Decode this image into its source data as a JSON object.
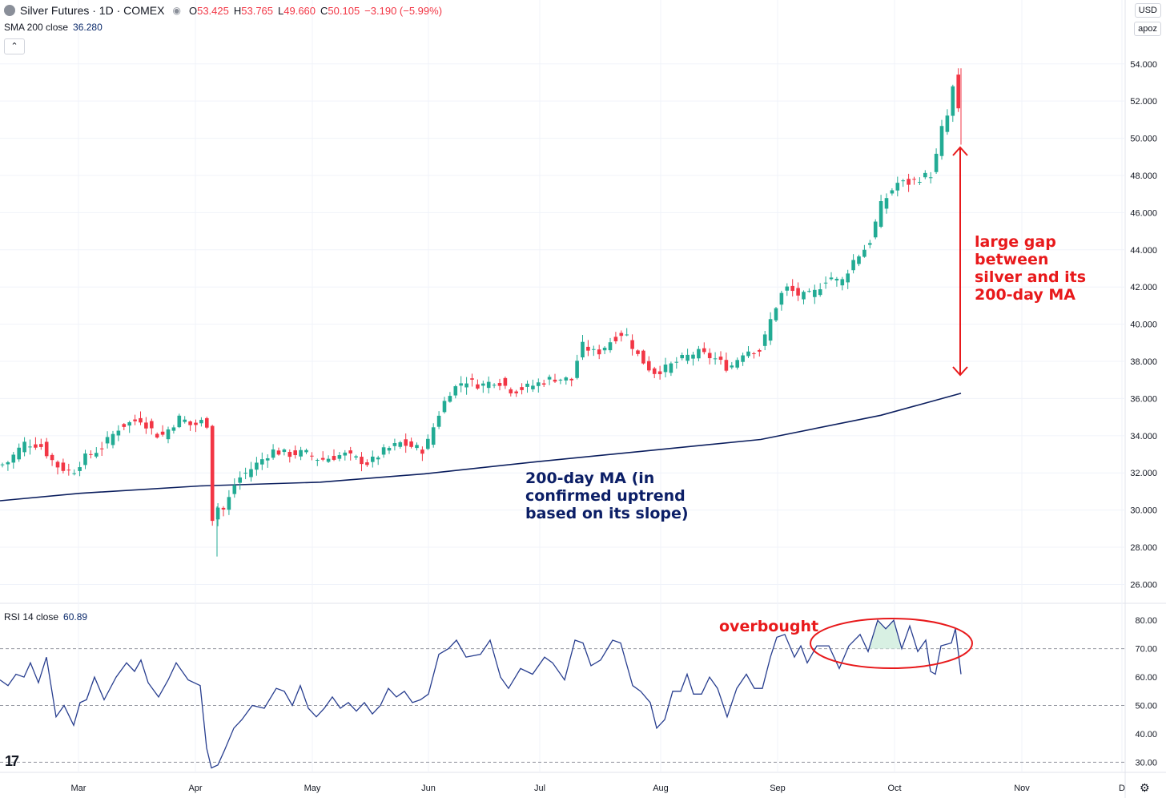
{
  "header": {
    "title": "Silver Futures · 1D · COMEX",
    "ohlc": [
      {
        "label": "O",
        "value": "53.425"
      },
      {
        "label": "H",
        "value": "53.765"
      },
      {
        "label": "L",
        "value": "49.660"
      },
      {
        "label": "C",
        "value": "50.105"
      }
    ],
    "change": "−3.190 (−5.99%)",
    "sma_label": "SMA 200 close",
    "sma_value": "36.280",
    "currency": "USD",
    "scale_mode": "apoz"
  },
  "rsi_panel": {
    "label": "RSI 14 close",
    "value": "60.89"
  },
  "annotations": {
    "gap": "large gap\nbetween\nsilver and its\n200-day MA",
    "ma": "200-day MA (in\nconfirmed uptrend\nbased on its slope)",
    "overbought": "overbought"
  },
  "colors": {
    "up": "#22ab94",
    "down": "#f23645",
    "ma": "#0b1e5e",
    "rsi": "#283e8f",
    "annotation_red": "#e8191b",
    "overbought_fill": "#d8f0e3"
  },
  "chart_data": [
    {
      "type": "candlestick",
      "title": "Silver Futures · 1D · COMEX",
      "x_ticks": [
        "Mar",
        "Apr",
        "May",
        "Jun",
        "Jul",
        "Aug",
        "Sep",
        "Oct",
        "Nov",
        "D"
      ],
      "y_ticks": [
        "26.000",
        "28.000",
        "30.000",
        "32.000",
        "34.000",
        "36.000",
        "38.000",
        "40.000",
        "42.000",
        "44.000",
        "46.000",
        "48.000",
        "50.000",
        "52.000",
        "54.000"
      ],
      "ylim": [
        25.2,
        55.8
      ],
      "grid": true,
      "series": [
        {
          "name": "SMA 200 close",
          "ma_points": [
            [
              0,
              30.5
            ],
            [
              100,
              30.9
            ],
            [
              250,
              31.3
            ],
            [
              400,
              31.5
            ],
            [
              530,
              31.95
            ],
            [
              670,
              32.6
            ],
            [
              810,
              33.2
            ],
            [
              950,
              33.8
            ],
            [
              1100,
              35.1
            ],
            [
              1200,
              36.28
            ]
          ]
        },
        {
          "name": "Silver Futures",
          "anchors": [
            [
              0,
              32.4
            ],
            [
              10,
              32.6
            ],
            [
              30,
              33.6
            ],
            [
              50,
              33.5
            ],
            [
              70,
              32.4
            ],
            [
              90,
              32.0
            ],
            [
              105,
              32.8
            ],
            [
              125,
              33.3
            ],
            [
              150,
              34.5
            ],
            [
              175,
              34.9
            ],
            [
              200,
              33.9
            ],
            [
              225,
              35.0
            ],
            [
              240,
              34.5
            ],
            [
              258,
              34.9
            ],
            [
              264,
              29.4
            ],
            [
              270,
              30.2
            ],
            [
              280,
              30.0
            ],
            [
              295,
              31.6
            ],
            [
              310,
              32.1
            ],
            [
              340,
              33.2
            ],
            [
              360,
              33.0
            ],
            [
              380,
              33.1
            ],
            [
              400,
              32.7
            ],
            [
              430,
              33.0
            ],
            [
              460,
              32.5
            ],
            [
              480,
              33.2
            ],
            [
              500,
              33.6
            ],
            [
              530,
              33.2
            ],
            [
              545,
              34.9
            ],
            [
              560,
              36.3
            ],
            [
              580,
              37.0
            ],
            [
              600,
              36.7
            ],
            [
              620,
              37.0
            ],
            [
              640,
              36.4
            ],
            [
              665,
              36.7
            ],
            [
              690,
              37.1
            ],
            [
              715,
              37.0
            ],
            [
              725,
              38.9
            ],
            [
              745,
              38.4
            ],
            [
              765,
              39.2
            ],
            [
              780,
              39.6
            ],
            [
              795,
              38.4
            ],
            [
              815,
              37.4
            ],
            [
              830,
              37.6
            ],
            [
              850,
              38.1
            ],
            [
              870,
              38.5
            ],
            [
              895,
              38.1
            ],
            [
              910,
              37.6
            ],
            [
              930,
              38.6
            ],
            [
              950,
              38.6
            ],
            [
              965,
              40.6
            ],
            [
              980,
              42.0
            ],
            [
              1000,
              41.5
            ],
            [
              1015,
              41.6
            ],
            [
              1035,
              42.6
            ],
            [
              1050,
              42.2
            ],
            [
              1065,
              43.4
            ],
            [
              1085,
              44.3
            ],
            [
              1100,
              46.4
            ],
            [
              1120,
              47.6
            ],
            [
              1135,
              47.6
            ],
            [
              1150,
              47.9
            ],
            [
              1165,
              48.1
            ],
            [
              1175,
              50.4
            ],
            [
              1185,
              51.4
            ],
            [
              1192,
              53.3
            ],
            [
              1200,
              50.1
            ]
          ]
        }
      ]
    },
    {
      "type": "line",
      "title": "RSI 14 close",
      "y_ticks": [
        "30.00",
        "40.00",
        "50.00",
        "60.00",
        "70.00",
        "80.00"
      ],
      "ylim": [
        27,
        84
      ],
      "reference_lines": [
        30,
        50,
        70
      ],
      "series": [
        {
          "name": "RSI 14 close",
          "points": [
            [
              0,
              59
            ],
            [
              10,
              57
            ],
            [
              20,
              61
            ],
            [
              30,
              60
            ],
            [
              38,
              65
            ],
            [
              48,
              58
            ],
            [
              58,
              67
            ],
            [
              70,
              46
            ],
            [
              80,
              50
            ],
            [
              92,
              43
            ],
            [
              100,
              51
            ],
            [
              108,
              52
            ],
            [
              118,
              60
            ],
            [
              130,
              52
            ],
            [
              145,
              60
            ],
            [
              158,
              65
            ],
            [
              168,
              62
            ],
            [
              176,
              66
            ],
            [
              185,
              58
            ],
            [
              198,
              53
            ],
            [
              210,
              59
            ],
            [
              220,
              65
            ],
            [
              235,
              59
            ],
            [
              250,
              57
            ],
            [
              258,
              35
            ],
            [
              264,
              28
            ],
            [
              272,
              29
            ],
            [
              280,
              34
            ],
            [
              292,
              42
            ],
            [
              302,
              45
            ],
            [
              315,
              50
            ],
            [
              330,
              49
            ],
            [
              345,
              56
            ],
            [
              355,
              55
            ],
            [
              365,
              50
            ],
            [
              375,
              57
            ],
            [
              385,
              49
            ],
            [
              395,
              46
            ],
            [
              405,
              49
            ],
            [
              415,
              53
            ],
            [
              425,
              49
            ],
            [
              435,
              51
            ],
            [
              445,
              48
            ],
            [
              455,
              51
            ],
            [
              465,
              47
            ],
            [
              475,
              50
            ],
            [
              485,
              56
            ],
            [
              495,
              53
            ],
            [
              505,
              55
            ],
            [
              515,
              51
            ],
            [
              525,
              52
            ],
            [
              535,
              54
            ],
            [
              548,
              68
            ],
            [
              560,
              70
            ],
            [
              570,
              73
            ],
            [
              582,
              67
            ],
            [
              600,
              68
            ],
            [
              612,
              73
            ],
            [
              625,
              60
            ],
            [
              635,
              56
            ],
            [
              650,
              63
            ],
            [
              665,
              61
            ],
            [
              680,
              67
            ],
            [
              690,
              65
            ],
            [
              705,
              59
            ],
            [
              718,
              73
            ],
            [
              728,
              72
            ],
            [
              738,
              64
            ],
            [
              750,
              66
            ],
            [
              765,
              73
            ],
            [
              775,
              72
            ],
            [
              790,
              57
            ],
            [
              800,
              55
            ],
            [
              812,
              51
            ],
            [
              820,
              42
            ],
            [
              830,
              45
            ],
            [
              840,
              55
            ],
            [
              850,
              55
            ],
            [
              858,
              61
            ],
            [
              866,
              54
            ],
            [
              876,
              54
            ],
            [
              886,
              60
            ],
            [
              896,
              56
            ],
            [
              908,
              46
            ],
            [
              920,
              56
            ],
            [
              932,
              61
            ],
            [
              942,
              56
            ],
            [
              952,
              56
            ],
            [
              962,
              67
            ],
            [
              970,
              74
            ],
            [
              980,
              75
            ],
            [
              992,
              67
            ],
            [
              1000,
              71
            ],
            [
              1008,
              65
            ],
            [
              1020,
              71
            ],
            [
              1035,
              71
            ],
            [
              1048,
              63
            ],
            [
              1060,
              71
            ],
            [
              1074,
              75
            ],
            [
              1084,
              69
            ],
            [
              1096,
              80
            ],
            [
              1106,
              77
            ],
            [
              1116,
              80
            ],
            [
              1126,
              70
            ],
            [
              1136,
              78
            ],
            [
              1146,
              69
            ],
            [
              1156,
              73
            ],
            [
              1162,
              62
            ],
            [
              1168,
              61
            ],
            [
              1175,
              71
            ],
            [
              1188,
              72
            ],
            [
              1193,
              77
            ],
            [
              1200,
              61
            ]
          ]
        }
      ]
    }
  ]
}
